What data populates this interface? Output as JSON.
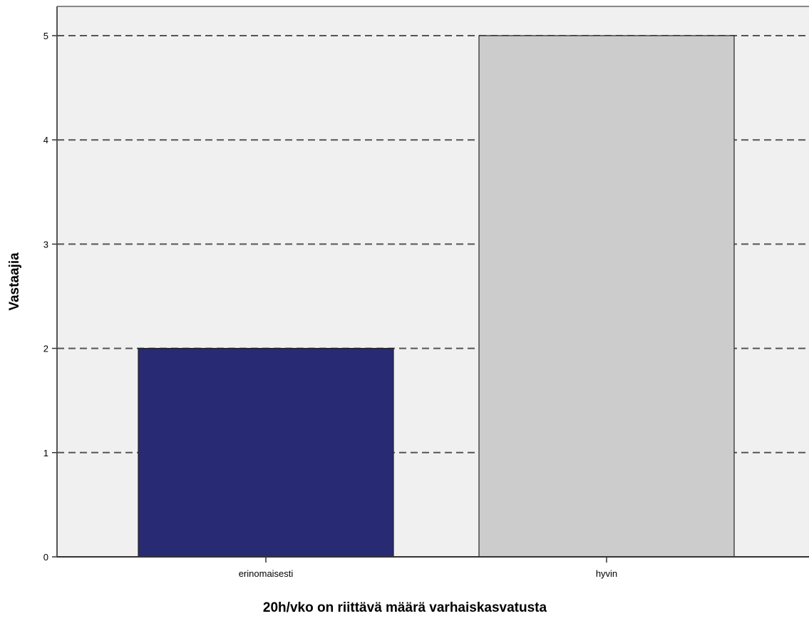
{
  "chart_data": {
    "type": "bar",
    "categories": [
      "erinomaisesti",
      "hyvin"
    ],
    "values": [
      2,
      5
    ],
    "bar_colors": [
      "#282a73",
      "#cccccc"
    ],
    "title": "",
    "xlabel": "20h/vko on riittävä määrä varhaiskasvatusta",
    "ylabel": "Vastaajia",
    "ylim": [
      0,
      5.3
    ],
    "yticks": [
      0,
      1,
      2,
      3,
      4,
      5
    ],
    "grid": true,
    "grid_style": "dashed",
    "plot_background": "#f0f0f0"
  }
}
